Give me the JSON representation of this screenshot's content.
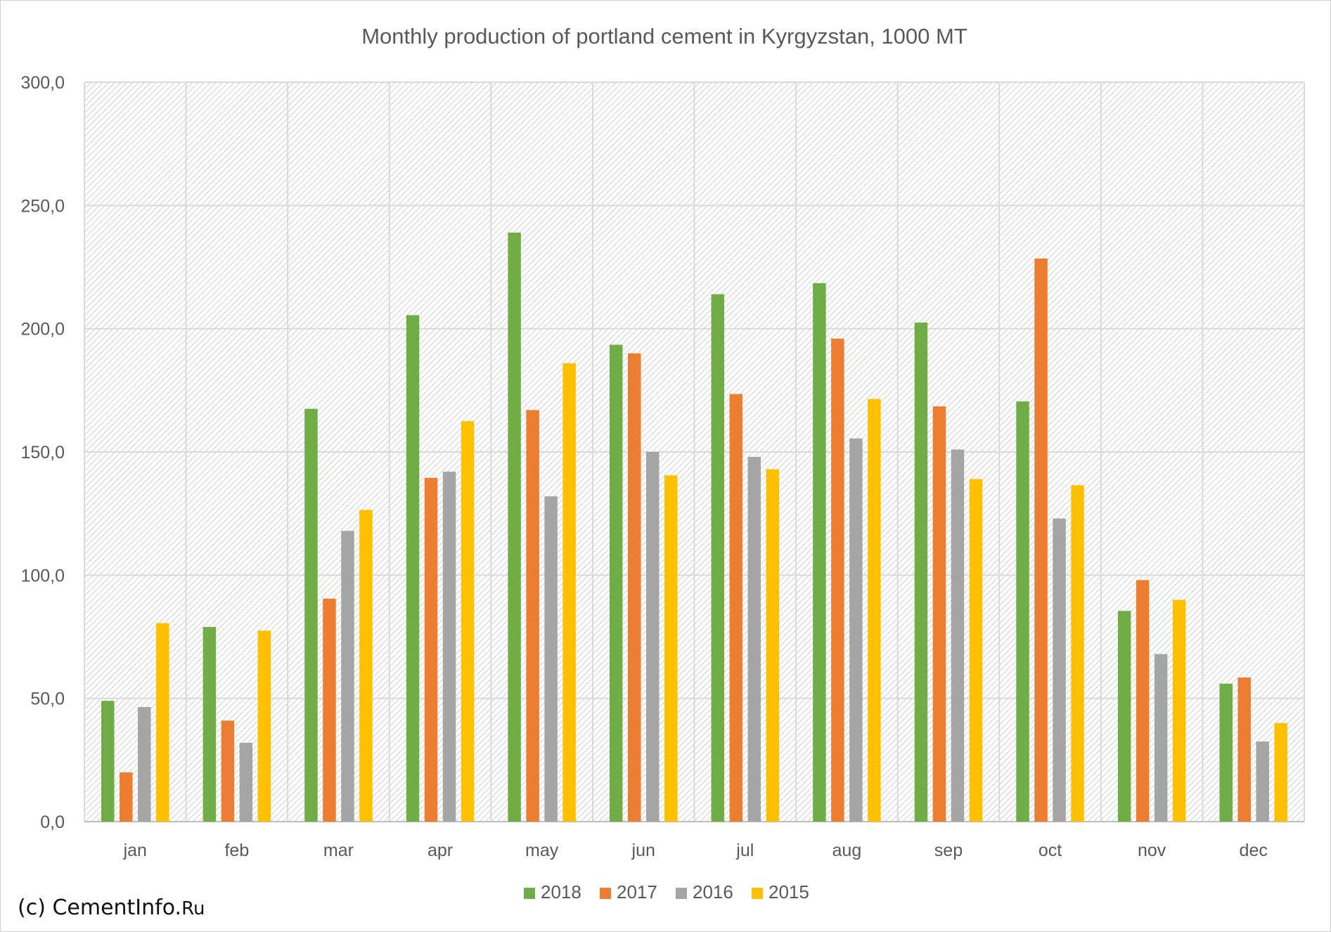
{
  "credit": {
    "prefix": "(c) CementInfo.",
    "suffix": "Ru"
  },
  "chart_data": {
    "type": "bar",
    "title": "Monthly production of portland cement in Kyrgyzstan, 1000 MT",
    "xlabel": "",
    "ylabel": "",
    "categories": [
      "jan",
      "feb",
      "mar",
      "apr",
      "may",
      "jun",
      "jul",
      "aug",
      "sep",
      "oct",
      "nov",
      "dec"
    ],
    "ylim": [
      0,
      300
    ],
    "yticks": [
      0,
      50,
      100,
      150,
      200,
      250,
      300
    ],
    "ytick_labels": [
      "0,0",
      "50,0",
      "100,0",
      "150,0",
      "200,0",
      "250,0",
      "300,0"
    ],
    "grid": true,
    "legend_position": "bottom",
    "series": [
      {
        "name": "2018",
        "color": "#70ad47",
        "values": [
          49,
          79,
          167.5,
          205.5,
          239,
          193.5,
          214,
          218.5,
          202.5,
          170.5,
          85.5,
          56
        ]
      },
      {
        "name": "2017",
        "color": "#ed7d31",
        "values": [
          20,
          41,
          90.5,
          139.5,
          167,
          190,
          173.5,
          196,
          168.5,
          228.5,
          98,
          58.5
        ]
      },
      {
        "name": "2016",
        "color": "#a5a5a5",
        "values": [
          46.5,
          32,
          118,
          142,
          132,
          150,
          148,
          155.5,
          151,
          123,
          68,
          32.5
        ]
      },
      {
        "name": "2015",
        "color": "#ffc000",
        "values": [
          80.5,
          77.5,
          126.5,
          162.5,
          186,
          140.5,
          143,
          171.5,
          139,
          136.5,
          90,
          40
        ]
      }
    ]
  }
}
